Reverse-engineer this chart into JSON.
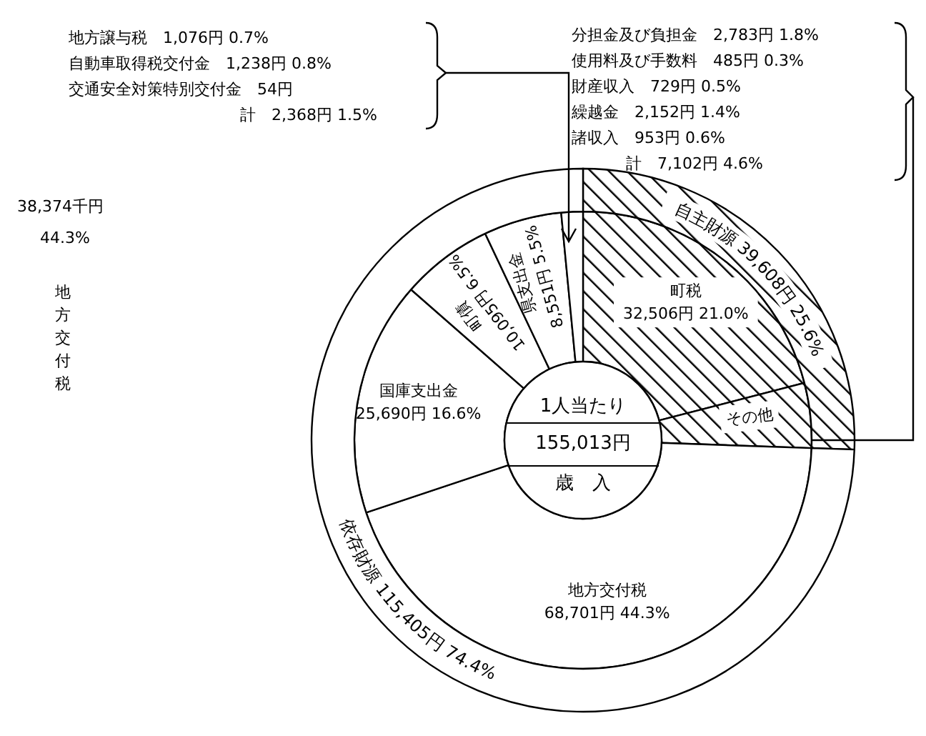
{
  "chart_data": [
    {
      "type": "donut",
      "categories": [
        "町税",
        "その他",
        "地方交付税",
        "国庫支出金",
        "町債",
        "県支出金",
        null
      ],
      "values": [
        32506,
        7102,
        68701,
        25690,
        10095,
        8551,
        2368
      ],
      "colors": [
        "#000000",
        "#000000",
        "#ffffff",
        "#ffffff",
        "#ffffff",
        "#ffffff",
        "#ffffff"
      ],
      "value_labels": [
        "32,506円 21.0%",
        null,
        "68,701円 44.3%",
        "25,690円 16.6%",
        "10,095円 6.5%",
        "8,551円 5.5%",
        null
      ],
      "annotations": [
        "地方譲与税　1,076円 0.7%",
        "自動車取得税交付金　1,238円 0.8%",
        "交通安全対策特別交付金　54円",
        "計　2,368円 1.5%",
        "分担金及び負担金　2,783円 1.8%",
        "使用料及び手数料　485円 0.3%",
        "財産収入　729円 0.5%",
        "繰越金　2,152円 1.4%",
        "諸収入　953円 0.6%",
        "計　7,102円 4.6%",
        "1人当たり",
        "155,013円",
        "歳　入",
        "38,374千円",
        "44.3%",
        "地方交付税"
      ]
    },
    {
      "type": "donut",
      "categories": [
        "自主財源",
        "依存財源"
      ],
      "values": [
        39608,
        115405
      ],
      "colors": [
        "#000000",
        "#ffffff"
      ],
      "value_labels": [
        "39,608円 25.6%",
        "115,405円 74.4%"
      ]
    }
  ]
}
